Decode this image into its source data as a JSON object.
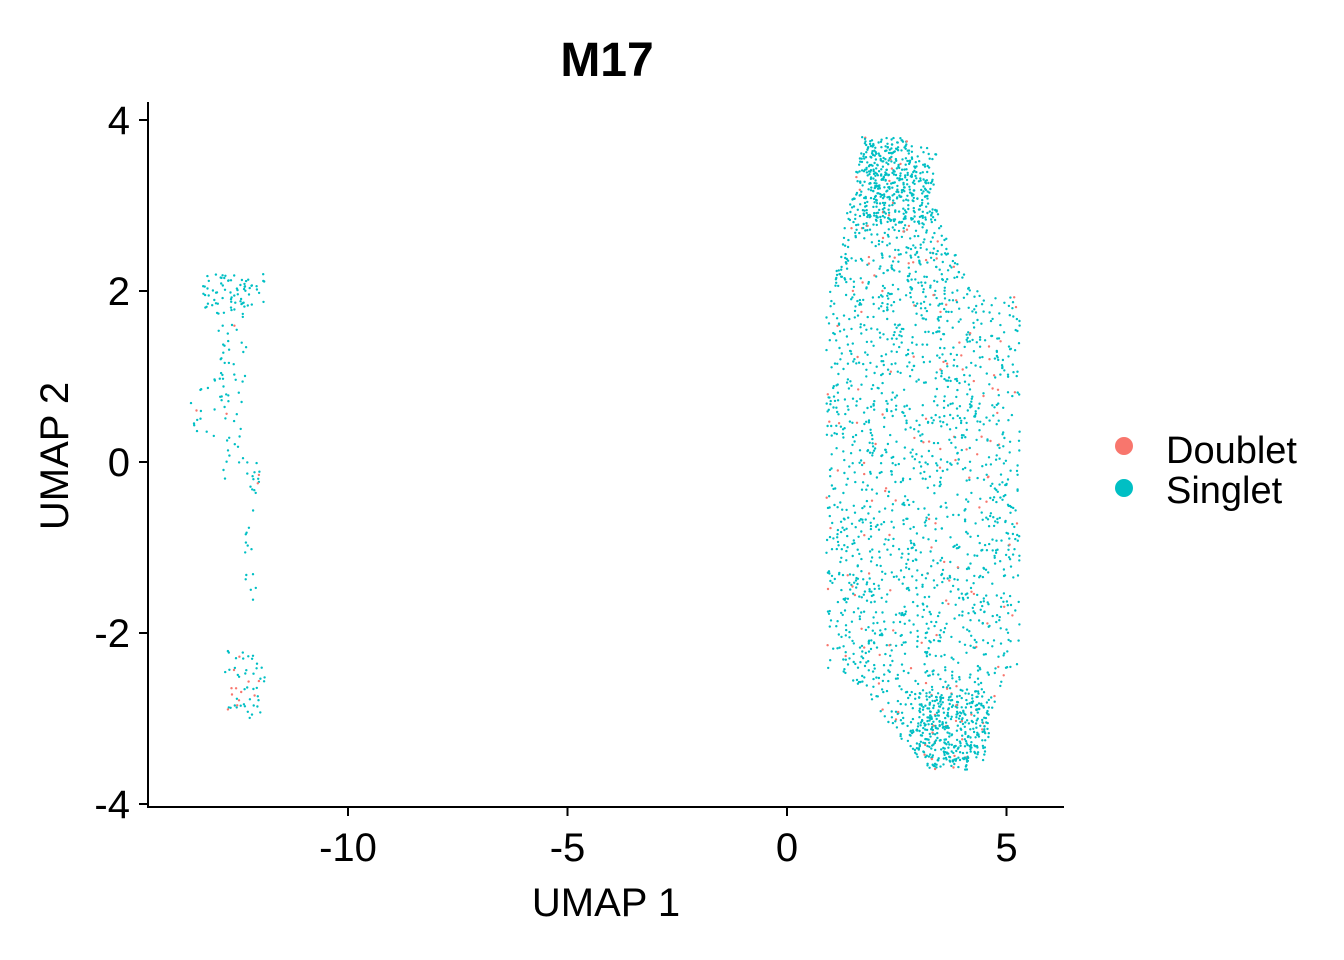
{
  "chart_data": {
    "type": "scatter",
    "title": "M17",
    "xlabel": "UMAP 1",
    "ylabel": "UMAP 2",
    "xlim": [
      -14.5,
      6.3
    ],
    "ylim": [
      -4.1,
      4.2
    ],
    "x_ticks": [
      -10,
      -5,
      0,
      5
    ],
    "x_tick_labels": [
      "-10",
      "-5",
      "0",
      "5"
    ],
    "y_ticks": [
      -4,
      -2,
      0,
      2,
      4
    ],
    "y_tick_labels": [
      "-4",
      "-2",
      "0",
      "2",
      "4"
    ],
    "grid": false,
    "legend": {
      "position": "right",
      "entries": [
        {
          "name": "Doublet",
          "color": "#F8766D"
        },
        {
          "name": "Singlet",
          "color": "#00BFC4"
        }
      ]
    },
    "clusters": [
      {
        "name": "left-cluster",
        "x_range": [
          -13.6,
          -11.8
        ],
        "y_range": [
          -3.0,
          2.2
        ],
        "count": 190
      },
      {
        "name": "right-cluster",
        "x_range": [
          0.9,
          5.4
        ],
        "y_range": [
          -3.6,
          3.8
        ],
        "count": 2400,
        "doublet_fraction": 0.07
      }
    ]
  }
}
